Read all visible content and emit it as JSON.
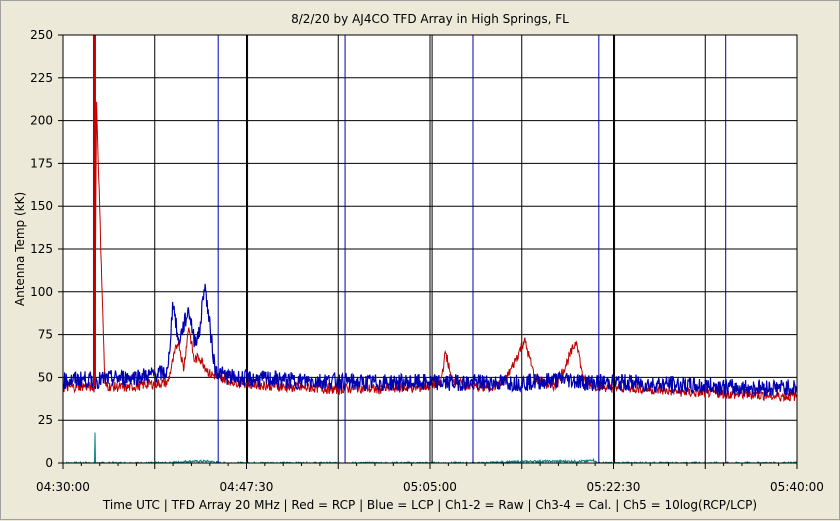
{
  "chart_data": {
    "type": "line",
    "title": "8/2/20  by  AJ4CO TFD Array  in  High Springs, FL",
    "xlabel": "Time UTC | TFD Array 20 MHz | Red = RCP | Blue = LCP | Ch1-2 = Raw | Ch3-4 = Cal. | Ch5 = 10log(RCP/LCP)",
    "ylabel": "Antenna Temp (kK)",
    "ylim": [
      0,
      250
    ],
    "yticks": [
      0,
      25,
      50,
      75,
      100,
      125,
      150,
      175,
      200,
      225,
      250
    ],
    "xlim_minutes": [
      0,
      70
    ],
    "xticks": [
      {
        "minute": 0,
        "label": "04:30:00"
      },
      {
        "minute": 17.5,
        "label": "04:47:30"
      },
      {
        "minute": 35,
        "label": "05:05:00"
      },
      {
        "minute": 52.5,
        "label": "05:22:30"
      },
      {
        "minute": 70,
        "label": "05:40:00"
      }
    ],
    "grid": true,
    "colors": {
      "rcp": "#c00000",
      "lcp": "#0000b0",
      "ratio": "#008080",
      "background": "#ece9d8",
      "plot_background": "#ffffff"
    },
    "series": [
      {
        "name": "RCP",
        "color": "#c00000",
        "x": [
          0,
          2,
          3,
          3.2,
          4,
          6,
          8,
          10,
          10.5,
          11,
          11.5,
          12,
          12.5,
          13,
          14,
          15,
          16,
          18,
          20,
          22,
          24,
          26,
          28,
          30,
          32,
          34,
          36,
          36.5,
          37,
          38,
          40,
          42,
          43,
          44,
          45,
          46,
          47,
          48,
          49,
          49.5,
          50,
          51,
          52,
          54,
          56,
          58,
          60,
          62,
          64,
          66,
          68,
          70
        ],
        "values": [
          44,
          45,
          44,
          210,
          45,
          44,
          46,
          47,
          60,
          72,
          55,
          80,
          60,
          62,
          52,
          50,
          48,
          46,
          45,
          44,
          44,
          43,
          44,
          43,
          44,
          44,
          47,
          65,
          50,
          46,
          44,
          46,
          58,
          72,
          50,
          46,
          45,
          58,
          72,
          52,
          46,
          45,
          44,
          44,
          43,
          42,
          41,
          41,
          40,
          40,
          39,
          39
        ]
      },
      {
        "name": "LCP",
        "color": "#0000b0",
        "x": [
          0,
          2,
          3,
          4,
          6,
          8,
          10,
          10.5,
          11,
          12,
          12.5,
          13,
          13.5,
          14,
          14.5,
          15,
          16,
          18,
          20,
          22,
          24,
          26,
          28,
          30,
          32,
          34,
          36,
          38,
          40,
          42,
          44,
          46,
          48,
          50,
          52,
          54,
          56,
          58,
          60,
          62,
          64,
          66,
          68,
          70
        ],
        "values": [
          48,
          49,
          48,
          49,
          50,
          51,
          53,
          95,
          70,
          90,
          72,
          75,
          105,
          80,
          55,
          52,
          50,
          49,
          49,
          48,
          48,
          48,
          47,
          47,
          47,
          47,
          47,
          47,
          47,
          47,
          47,
          48,
          49,
          47,
          47,
          47,
          46,
          46,
          45,
          45,
          44,
          44,
          44,
          44
        ]
      },
      {
        "name": "10log(RCP/LCP)",
        "color": "#008080",
        "x": [
          0,
          2,
          3,
          3.05,
          3.1,
          4,
          10,
          12,
          14,
          15,
          16,
          20,
          25,
          30,
          35,
          38,
          40,
          45,
          50,
          50.5,
          51,
          52.5,
          55,
          60,
          63,
          63.5,
          64,
          65,
          70
        ],
        "values": [
          0,
          0,
          0,
          18,
          0,
          0,
          0,
          1,
          1,
          0,
          0,
          0,
          0,
          0,
          0,
          0,
          0,
          1,
          1,
          2,
          0,
          0,
          0,
          0,
          0,
          0,
          0,
          0,
          0
        ]
      }
    ],
    "vertical_markers": [
      {
        "minute": 3,
        "color": "#c00000",
        "series": "RCP"
      },
      {
        "minute": 14.8,
        "color": "#0000b0",
        "series": "LCP"
      },
      {
        "minute": 17.6,
        "color": "#000000",
        "series": "marker"
      },
      {
        "minute": 26.9,
        "color": "#0000b0",
        "series": "LCP"
      },
      {
        "minute": 35.2,
        "color": "#000000",
        "series": "marker"
      },
      {
        "minute": 39.1,
        "color": "#0000b0",
        "series": "LCP"
      },
      {
        "minute": 51.1,
        "color": "#0000b0",
        "series": "LCP"
      },
      {
        "minute": 52.6,
        "color": "#000000",
        "series": "marker"
      },
      {
        "minute": 63.2,
        "color": "#0000b0",
        "series": "LCP"
      }
    ]
  }
}
